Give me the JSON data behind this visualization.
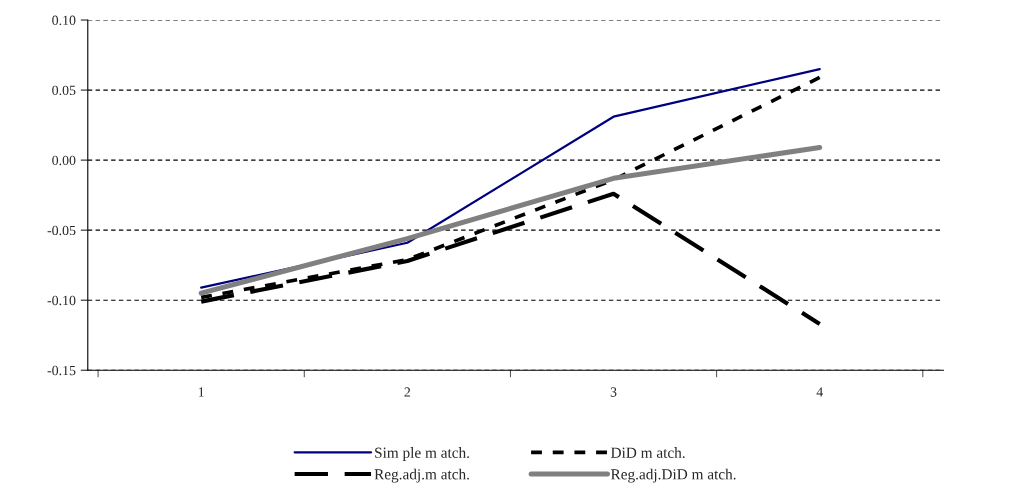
{
  "chart_data": {
    "type": "line",
    "categories": [
      "1",
      "2",
      "3",
      "4"
    ],
    "series": [
      {
        "name": "Sim ple m atch.",
        "color": "#000080",
        "line_style": "solid",
        "values": [
          -0.091,
          -0.059,
          0.031,
          0.065
        ]
      },
      {
        "name": "Reg.adj.m atch.",
        "color": "#000000",
        "line_style": "dashed",
        "values": [
          -0.101,
          -0.072,
          -0.024,
          -0.117
        ]
      },
      {
        "name": "DiD m atch.",
        "color": "#000000",
        "line_style": "dotted",
        "values": [
          -0.098,
          -0.071,
          -0.014,
          0.059
        ]
      },
      {
        "name": "Reg.adj.DiD m atch.",
        "color": "#808080",
        "line_style": "solid",
        "values": [
          -0.095,
          -0.056,
          -0.013,
          0.009
        ]
      }
    ],
    "ylim": [
      -0.15,
      0.1
    ],
    "yticks": [
      {
        "value": -0.15,
        "label": "-0.15"
      },
      {
        "value": -0.1,
        "label": "-0.10"
      },
      {
        "value": -0.05,
        "label": "-0.05"
      },
      {
        "value": 0,
        "label": "0.00"
      },
      {
        "value": 0.05,
        "label": "0.05"
      },
      {
        "value": 0.1,
        "label": "0.10"
      }
    ],
    "grid": "y",
    "legend": "bottom",
    "marker": "none"
  }
}
